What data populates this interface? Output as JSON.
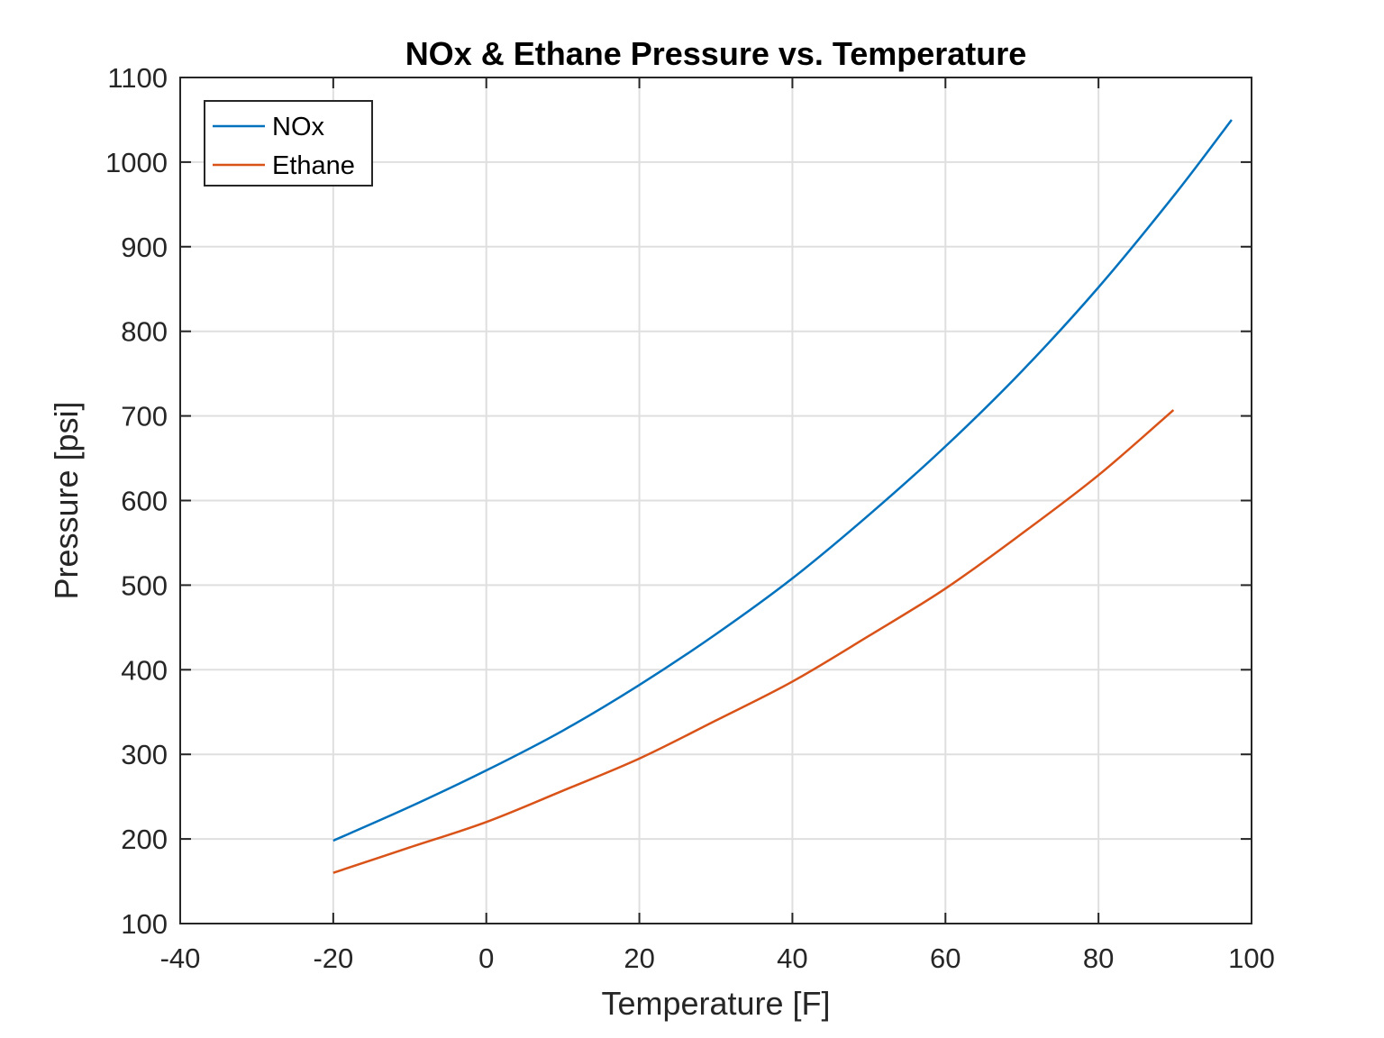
{
  "chart_data": {
    "type": "line",
    "title": "NOx & Ethane Pressure vs. Temperature",
    "xlabel": "Temperature [F]",
    "ylabel": "Pressure [psi]",
    "xlim": [
      -40,
      100
    ],
    "ylim": [
      100,
      1100
    ],
    "xticks": [
      -40,
      -20,
      0,
      20,
      40,
      60,
      80,
      100
    ],
    "yticks": [
      100,
      200,
      300,
      400,
      500,
      600,
      700,
      800,
      900,
      1000,
      1100
    ],
    "xtick_labels": [
      "-40",
      "-20",
      "0",
      "20",
      "40",
      "60",
      "80",
      "100"
    ],
    "ytick_labels": [
      "100",
      "200",
      "300",
      "400",
      "500",
      "600",
      "700",
      "800",
      "900",
      "1000",
      "1100"
    ],
    "grid": true,
    "legend_position": "top-left",
    "series": [
      {
        "name": "NOx",
        "color": "#0072BD",
        "x": [
          -20,
          -10,
          0,
          10,
          20,
          30,
          40,
          50,
          60,
          70,
          80,
          90,
          97.4
        ],
        "y": [
          198,
          238,
          281,
          328,
          382,
          442,
          508,
          583,
          664,
          753,
          852,
          962,
          1050
        ]
      },
      {
        "name": "Ethane",
        "color": "#D95319",
        "x": [
          -20,
          -10,
          0,
          10,
          20,
          30,
          40,
          50,
          60,
          70,
          80,
          89.8
        ],
        "y": [
          160,
          190,
          220,
          257,
          295,
          340,
          386,
          440,
          496,
          561,
          630,
          707
        ]
      }
    ]
  }
}
